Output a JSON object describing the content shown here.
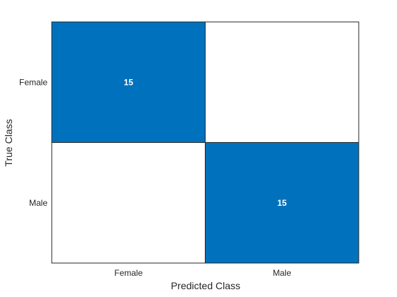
{
  "chart_data": {
    "type": "heatmap",
    "title": "",
    "xlabel": "Predicted Class",
    "ylabel": "True Class",
    "x_categories": [
      "Female",
      "Male"
    ],
    "y_categories": [
      "Female",
      "Male"
    ],
    "values": [
      [
        15,
        0
      ],
      [
        0,
        15
      ]
    ],
    "show_zero_labels": false,
    "grid": false,
    "legend": "none",
    "colors": {
      "high": "#0072BD",
      "low": "#FFFFFF",
      "high_text": "#FFFFFF",
      "low_text": "#262626",
      "cell_border": "#262626",
      "axis_text": "#262626"
    }
  }
}
